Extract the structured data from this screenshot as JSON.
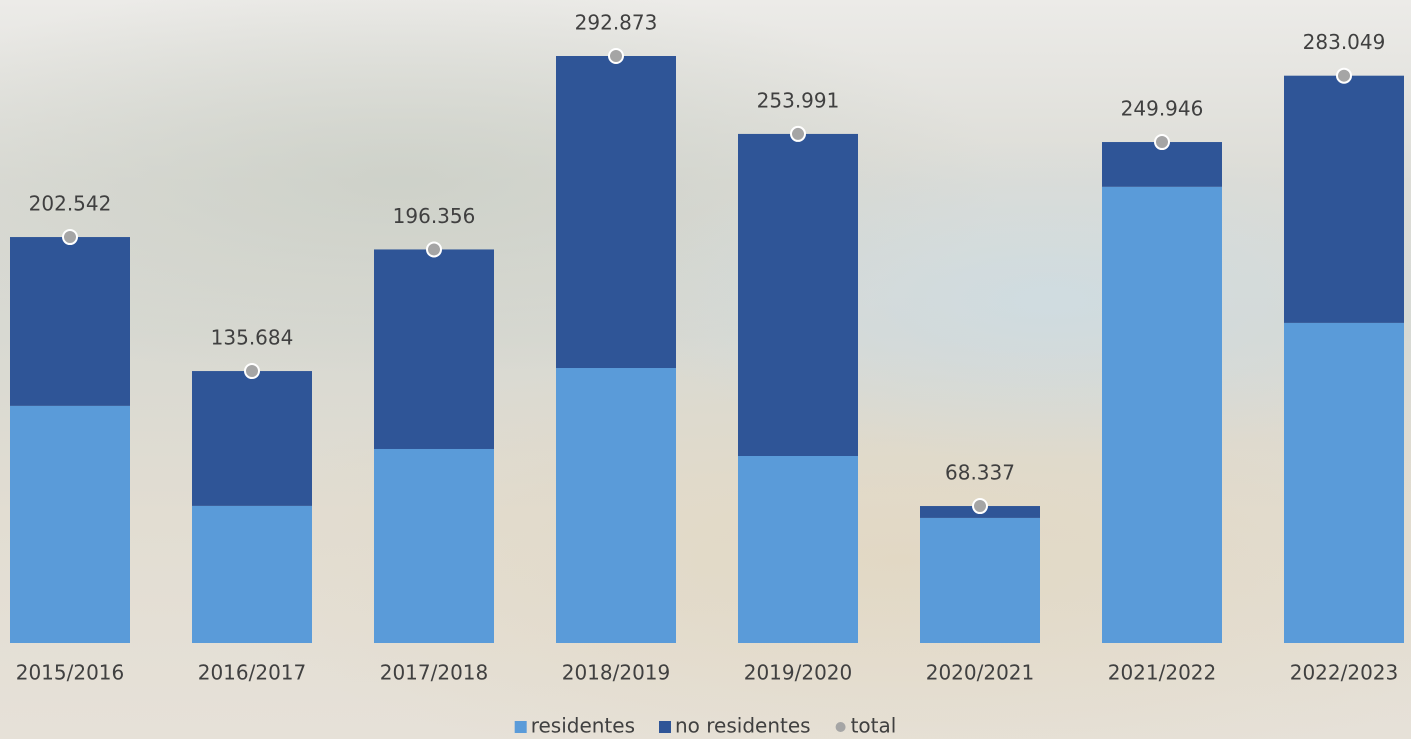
{
  "chart_data": {
    "type": "stacked-bar",
    "categories": [
      "2015/2016",
      "2016/2017",
      "2017/2018",
      "2018/2019",
      "2019/2020",
      "2020/2021",
      "2021/2022",
      "2022/2023"
    ],
    "series": [
      {
        "name": "residentes",
        "color": "#5a9bd9",
        "values": [
          118300,
          68400,
          96800,
          137200,
          93300,
          62400,
          227600,
          159700
        ]
      },
      {
        "name": "no residentes",
        "color": "#2f5597",
        "values": [
          84242,
          67284,
          99556,
          155673,
          160691,
          5937,
          22346,
          123349
        ]
      },
      {
        "name": "total",
        "color": "#a5a5a5",
        "marker": "dot",
        "values": [
          202542,
          135684,
          196356,
          292873,
          253991,
          68337,
          249946,
          283049
        ],
        "value_labels": [
          "202.542",
          "135.684",
          "196.356",
          "292.873",
          "253.991",
          "68.337",
          "249.946",
          "283.049"
        ]
      }
    ],
    "legend": "bottom"
  }
}
